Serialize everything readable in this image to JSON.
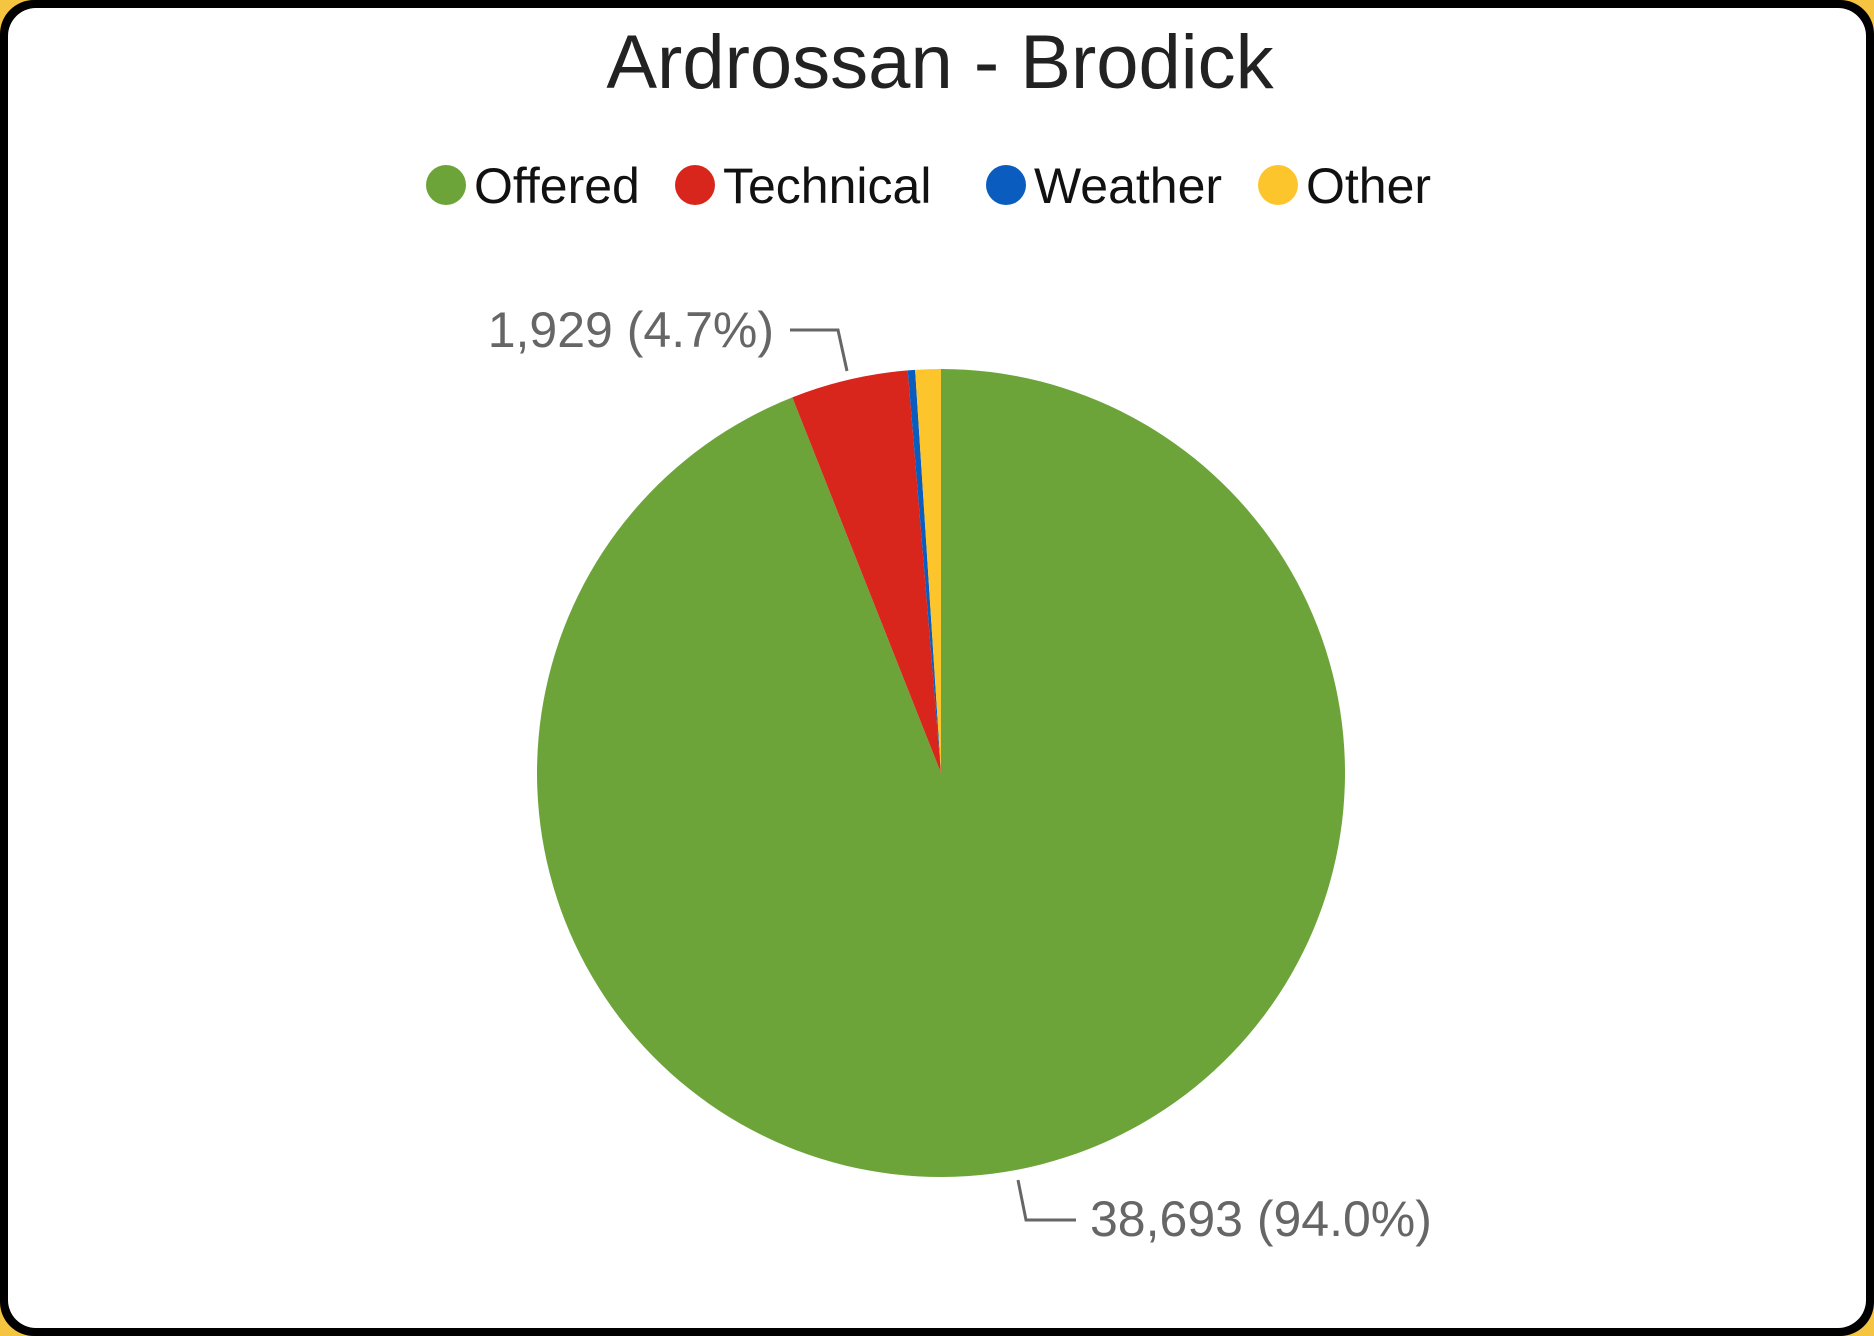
{
  "chart_data": {
    "type": "pie",
    "title": "Ardrossan - Brodick",
    "legend_position": "top",
    "categories": [
      "Offered",
      "Technical",
      "Weather",
      "Other"
    ],
    "values": [
      38693,
      1929,
      120,
      420
    ],
    "colors": [
      "#6ca43a",
      "#d9261c",
      "#0a5dbf",
      "#fdc52c"
    ],
    "data_labels": [
      {
        "category": "Offered",
        "text": "38,693 (94.0%)"
      },
      {
        "category": "Technical",
        "text": "1,929 (4.7%)"
      }
    ]
  }
}
